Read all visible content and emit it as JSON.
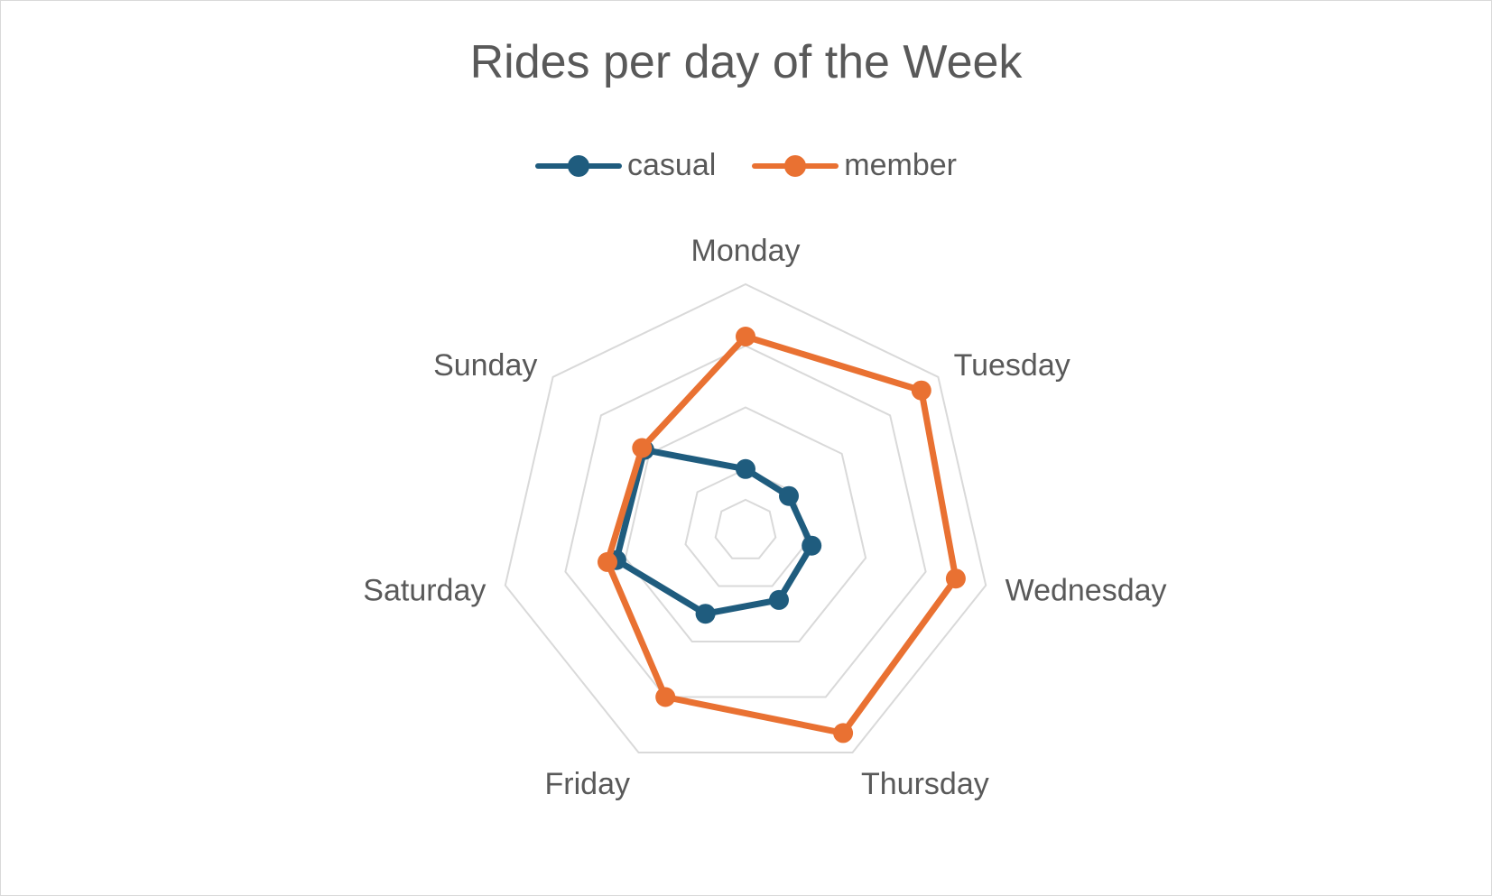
{
  "chart_data": {
    "type": "radar",
    "title": "Rides per day of the Week",
    "categories": [
      "Monday",
      "Tuesday",
      "Wednesday",
      "Thursday",
      "Friday",
      "Saturday",
      "Sunday"
    ],
    "series": [
      {
        "name": "casual",
        "color": "#1f5c7e",
        "values": [
          200,
          180,
          220,
          250,
          300,
          430,
          420
        ]
      },
      {
        "name": "member",
        "color": "#e97132",
        "values": [
          630,
          730,
          700,
          730,
          600,
          460,
          430
        ]
      }
    ],
    "r_range": [
      0,
      800
    ],
    "gridlines": [
      100,
      200,
      400,
      600,
      800
    ],
    "legend_position": "top",
    "grid": true
  }
}
